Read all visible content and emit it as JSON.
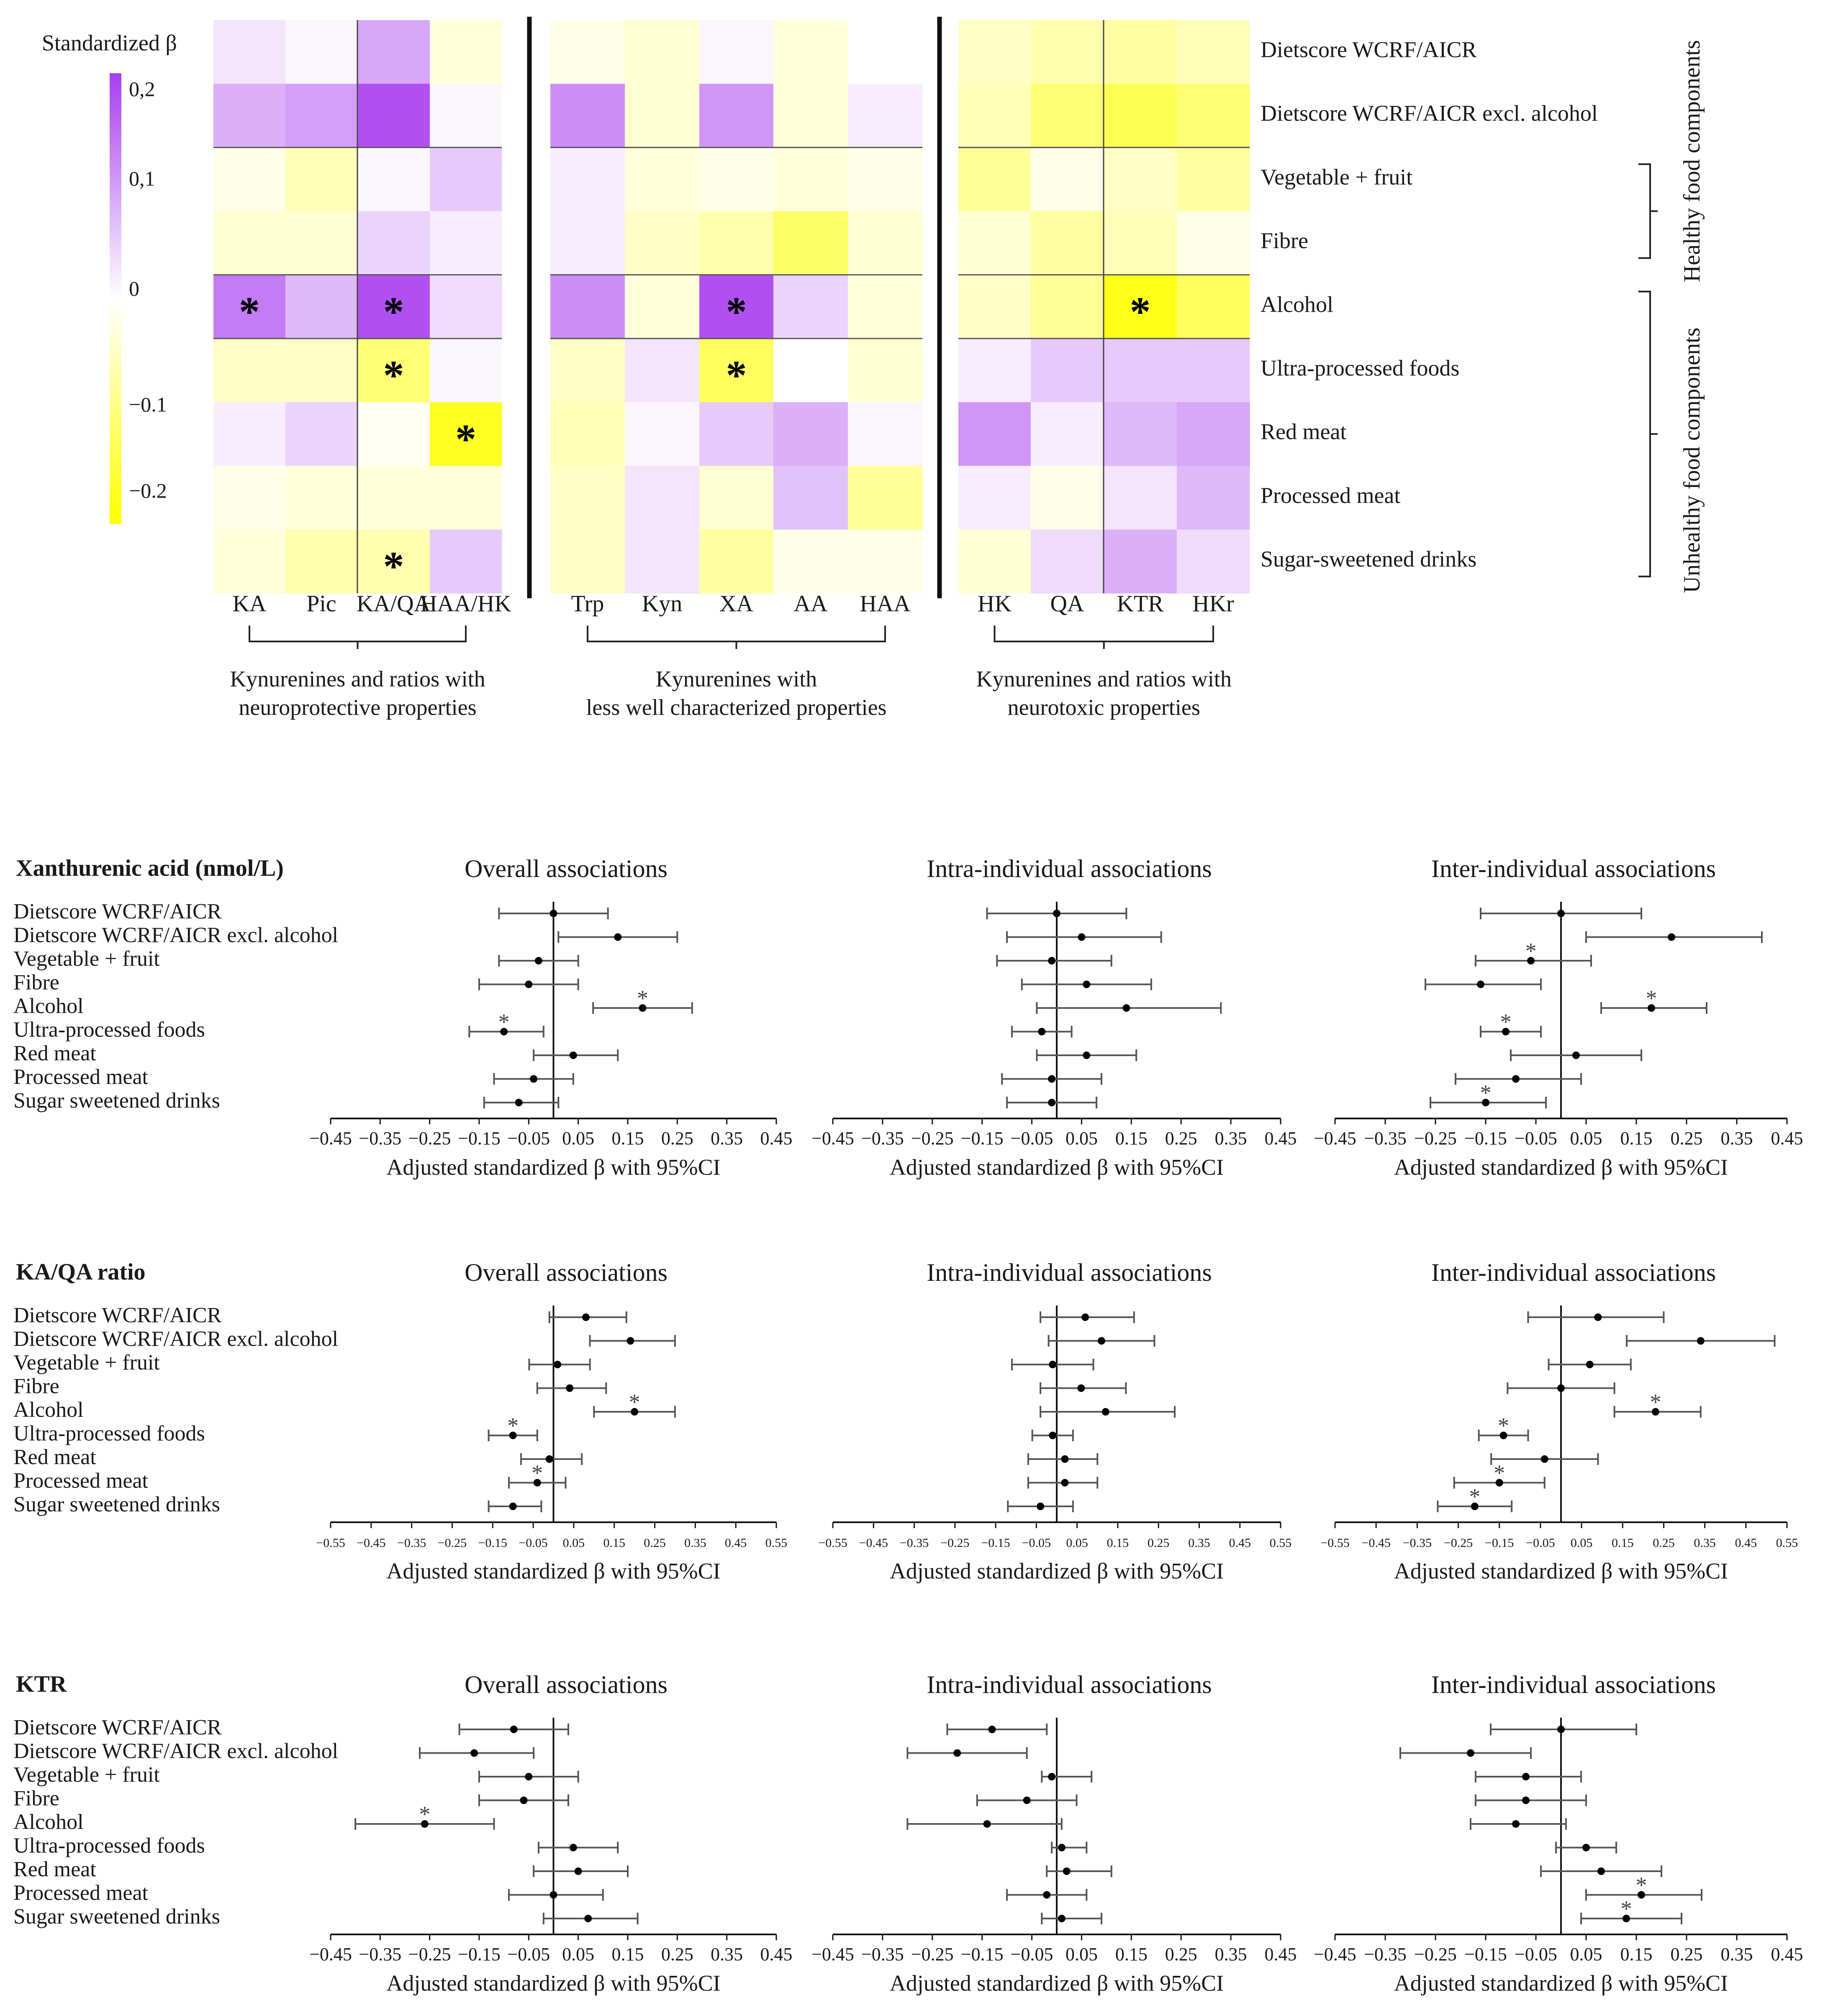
{
  "chart_data": [
    {
      "type": "heatmap",
      "legend_title": "Standardized β",
      "legend_ticks": [
        "0,2",
        "0,1",
        "0",
        "−0.1",
        "−0.2"
      ],
      "legend_tick_values": [
        0.2,
        0.1,
        0,
        -0.1,
        -0.2
      ],
      "color_range": [
        -0.22,
        0.22
      ],
      "colors": {
        "low": "#ffff00",
        "mid": "#ffffff",
        "high": "#a83ef0"
      },
      "rows": [
        "Dietscore WCRF/AICR",
        "Dietscore WCRF/AICR excl. alcohol",
        "Vegetable + fruit",
        "Fibre",
        "Alcohol",
        "Ultra-processed foods",
        "Red meat",
        "Processed meat",
        "Sugar-sweetened drinks"
      ],
      "columns": [
        "KA",
        "Pic",
        "KA/QA",
        "HAA/HK",
        "Trp",
        "Kyn",
        "XA",
        "AA",
        "HAA",
        "HK",
        "QA",
        "KTR",
        "HKr"
      ],
      "column_groups": [
        {
          "label": "Kynurenines and ratios with neuroprotective properties",
          "columns": [
            "KA",
            "Pic",
            "KA/QA",
            "HAA/HK"
          ]
        },
        {
          "label": "Kynurenines with less well characterized properties",
          "columns": [
            "Trp",
            "Kyn",
            "XA",
            "AA",
            "HAA"
          ]
        },
        {
          "label": "Kynurenines and ratios with neurotoxic properties",
          "columns": [
            "HK",
            "QA",
            "KTR",
            "HKr"
          ]
        }
      ],
      "row_groups": [
        {
          "label": "Healthy food components",
          "rows": [
            "Vegetable + fruit",
            "Fibre"
          ]
        },
        {
          "label": "Unhealthy food components",
          "rows": [
            "Alcohol",
            "Ultra-processed foods",
            "Red meat",
            "Processed meat",
            "Sugar-sweetened drinks"
          ]
        }
      ],
      "values": [
        [
          0.03,
          0.01,
          0.1,
          -0.03,
          -0.02,
          -0.04,
          0.01,
          -0.03,
          0.0,
          -0.05,
          -0.07,
          -0.08,
          -0.06
        ],
        [
          0.09,
          0.11,
          0.2,
          0.01,
          0.13,
          -0.04,
          0.12,
          -0.03,
          0.02,
          -0.06,
          -0.12,
          -0.15,
          -0.12
        ],
        [
          -0.02,
          -0.06,
          0.01,
          0.06,
          0.02,
          -0.03,
          -0.02,
          -0.03,
          -0.02,
          -0.09,
          -0.02,
          -0.05,
          -0.08
        ],
        [
          -0.04,
          -0.04,
          0.05,
          0.02,
          0.02,
          -0.05,
          -0.07,
          -0.13,
          -0.04,
          -0.04,
          -0.08,
          -0.06,
          -0.02
        ],
        [
          0.15,
          0.08,
          0.2,
          0.04,
          0.13,
          -0.03,
          0.2,
          0.05,
          -0.03,
          -0.05,
          -0.09,
          -0.2,
          -0.14
        ],
        [
          -0.05,
          -0.05,
          -0.12,
          0.01,
          -0.05,
          0.03,
          -0.14,
          0.0,
          -0.04,
          0.02,
          0.06,
          0.06,
          0.06
        ],
        [
          0.02,
          0.05,
          -0.01,
          -0.19,
          -0.06,
          0.01,
          0.06,
          0.09,
          0.01,
          0.12,
          0.02,
          0.08,
          0.1
        ],
        [
          -0.02,
          -0.03,
          -0.03,
          -0.03,
          -0.05,
          0.03,
          -0.04,
          0.07,
          -0.09,
          0.02,
          -0.02,
          0.03,
          0.08
        ],
        [
          -0.03,
          -0.07,
          -0.07,
          0.06,
          -0.05,
          0.03,
          -0.08,
          -0.02,
          -0.02,
          -0.04,
          0.04,
          0.09,
          0.04
        ]
      ],
      "significant": [
        {
          "row": "Alcohol",
          "column": "KA"
        },
        {
          "row": "Alcohol",
          "column": "KA/QA"
        },
        {
          "row": "Alcohol",
          "column": "XA"
        },
        {
          "row": "Alcohol",
          "column": "KTR"
        },
        {
          "row": "Ultra-processed foods",
          "column": "KA/QA"
        },
        {
          "row": "Ultra-processed foods",
          "column": "XA"
        },
        {
          "row": "Red meat",
          "column": "HAA/HK"
        },
        {
          "row": "Sugar-sweetened drinks",
          "column": "KA/QA"
        }
      ]
    },
    {
      "type": "scatter",
      "title": "Xanthurenic acid (nmol/L) — Overall associations",
      "section_label": "Xanthurenic acid (nmol/L)",
      "panel_title": "Overall associations",
      "xlabel": "Adjusted standardized β with 95%CI",
      "xlim": [
        -0.45,
        0.45
      ],
      "xticks": [
        "−0.45",
        "−0.35",
        "−0.25",
        "−0.15",
        "−0.05",
        "0.05",
        "0.15",
        "0.25",
        "0.35",
        "0.45"
      ],
      "categories": [
        "Dietscore WCRF/AICR",
        "Dietscore WCRF/AICR excl. alcohol",
        "Vegetable + fruit",
        "Fibre",
        "Alcohol",
        "Ultra-processed foods",
        "Red meat",
        "Processed meat",
        "Sugar sweetened drinks"
      ],
      "estimates": [
        0.0,
        0.13,
        -0.03,
        -0.05,
        0.18,
        -0.1,
        0.04,
        -0.04,
        -0.07
      ],
      "ci_lower": [
        -0.11,
        0.01,
        -0.11,
        -0.15,
        0.08,
        -0.17,
        -0.04,
        -0.12,
        -0.14
      ],
      "ci_upper": [
        0.11,
        0.25,
        0.05,
        0.05,
        0.28,
        -0.02,
        0.13,
        0.04,
        0.01
      ],
      "significant": [
        false,
        false,
        false,
        false,
        true,
        true,
        false,
        false,
        false
      ]
    },
    {
      "type": "scatter",
      "title": "Xanthurenic acid (nmol/L) — Intra-individual associations",
      "panel_title": "Intra-individual associations",
      "xlabel": "Adjusted standardized β with 95%CI",
      "xlim": [
        -0.45,
        0.45
      ],
      "xticks": [
        "−0.45",
        "−0.35",
        "−0.25",
        "−0.15",
        "−0.05",
        "0.05",
        "0.15",
        "0.25",
        "0.35",
        "0.45"
      ],
      "categories": [
        "Dietscore WCRF/AICR",
        "Dietscore WCRF/AICR excl. alcohol",
        "Vegetable + fruit",
        "Fibre",
        "Alcohol",
        "Ultra-processed foods",
        "Red meat",
        "Processed meat",
        "Sugar sweetened drinks"
      ],
      "estimates": [
        0.0,
        0.05,
        -0.01,
        0.06,
        0.14,
        -0.03,
        0.06,
        -0.01,
        -0.01
      ],
      "ci_lower": [
        -0.14,
        -0.1,
        -0.12,
        -0.07,
        -0.04,
        -0.09,
        -0.04,
        -0.11,
        -0.1
      ],
      "ci_upper": [
        0.14,
        0.21,
        0.11,
        0.19,
        0.33,
        0.03,
        0.16,
        0.09,
        0.08
      ],
      "significant": [
        false,
        false,
        false,
        false,
        false,
        false,
        false,
        false,
        false
      ]
    },
    {
      "type": "scatter",
      "title": "Xanthurenic acid (nmol/L) — Inter-individual associations",
      "panel_title": "Inter-individual associations",
      "xlabel": "Adjusted standardized β with 95%CI",
      "xlim": [
        -0.45,
        0.45
      ],
      "xticks": [
        "−0.45",
        "−0.35",
        "−0.25",
        "−0.15",
        "−0.05",
        "0.05",
        "0.15",
        "0.25",
        "0.35",
        "0.45"
      ],
      "categories": [
        "Dietscore WCRF/AICR",
        "Dietscore WCRF/AICR excl. alcohol",
        "Vegetable + fruit",
        "Fibre",
        "Alcohol",
        "Ultra-processed foods",
        "Red meat",
        "Processed meat",
        "Sugar sweetened drinks"
      ],
      "estimates": [
        0.0,
        0.22,
        -0.06,
        -0.16,
        0.18,
        -0.11,
        0.03,
        -0.09,
        -0.15
      ],
      "ci_lower": [
        -0.16,
        0.05,
        -0.17,
        -0.27,
        0.08,
        -0.16,
        -0.1,
        -0.21,
        -0.26
      ],
      "ci_upper": [
        0.16,
        0.4,
        0.06,
        -0.04,
        0.29,
        -0.04,
        0.16,
        0.04,
        -0.03
      ],
      "significant": [
        false,
        false,
        true,
        false,
        true,
        true,
        false,
        false,
        true
      ]
    },
    {
      "type": "scatter",
      "title": "KA/QA ratio — Overall associations",
      "section_label": "KA/QA ratio",
      "panel_title": "Overall associations",
      "xlabel": "Adjusted standardized β with 95%CI",
      "xlim": [
        -0.55,
        0.55
      ],
      "xticks": [
        "−0.55",
        "−0.45",
        "−0.35",
        "−0.25",
        "−0.15",
        "−0.05",
        "0.05",
        "0.15",
        "0.25",
        "0.35",
        "0.45",
        "0.55"
      ],
      "categories": [
        "Dietscore WCRF/AICR",
        "Dietscore WCRF/AICR excl. alcohol",
        "Vegetable + fruit",
        "Fibre",
        "Alcohol",
        "Ultra-processed foods",
        "Red meat",
        "Processed meat",
        "Sugar sweetened drinks"
      ],
      "estimates": [
        0.08,
        0.19,
        0.01,
        0.04,
        0.2,
        -0.1,
        -0.01,
        -0.04,
        -0.1
      ],
      "ci_lower": [
        -0.01,
        0.09,
        -0.06,
        -0.04,
        0.1,
        -0.16,
        -0.08,
        -0.11,
        -0.16
      ],
      "ci_upper": [
        0.18,
        0.3,
        0.09,
        0.13,
        0.3,
        -0.04,
        0.07,
        0.03,
        -0.03
      ],
      "significant": [
        false,
        false,
        false,
        false,
        true,
        true,
        false,
        true,
        false
      ]
    },
    {
      "type": "scatter",
      "title": "KA/QA ratio — Intra-individual associations",
      "panel_title": "Intra-individual associations",
      "xlabel": "Adjusted standardized β with 95%CI",
      "xlim": [
        -0.55,
        0.55
      ],
      "xticks": [
        "−0.55",
        "−0.45",
        "−0.35",
        "−0.25",
        "−0.15",
        "−0.05",
        "0.05",
        "0.15",
        "0.25",
        "0.35",
        "0.45",
        "0.55"
      ],
      "categories": [
        "Dietscore WCRF/AICR",
        "Dietscore WCRF/AICR excl. alcohol",
        "Vegetable + fruit",
        "Fibre",
        "Alcohol",
        "Ultra-processed foods",
        "Red meat",
        "Processed meat",
        "Sugar sweetened drinks"
      ],
      "estimates": [
        0.07,
        0.11,
        -0.01,
        0.06,
        0.12,
        -0.01,
        0.02,
        0.02,
        -0.04
      ],
      "ci_lower": [
        -0.04,
        -0.02,
        -0.11,
        -0.04,
        -0.04,
        -0.06,
        -0.07,
        -0.07,
        -0.12
      ],
      "ci_upper": [
        0.19,
        0.24,
        0.09,
        0.17,
        0.29,
        0.04,
        0.1,
        0.1,
        0.04
      ],
      "significant": [
        false,
        false,
        false,
        false,
        false,
        false,
        false,
        false,
        false
      ]
    },
    {
      "type": "scatter",
      "title": "KA/QA ratio — Inter-individual associations",
      "panel_title": "Inter-individual associations",
      "xlabel": "Adjusted standardized β with 95%CI",
      "xlim": [
        -0.55,
        0.55
      ],
      "xticks": [
        "−0.55",
        "−0.45",
        "−0.35",
        "−0.25",
        "−0.15",
        "−0.05",
        "0.05",
        "0.15",
        "0.25",
        "0.35",
        "0.45",
        "0.55"
      ],
      "categories": [
        "Dietscore WCRF/AICR",
        "Dietscore WCRF/AICR excl. alcohol",
        "Vegetable + fruit",
        "Fibre",
        "Alcohol",
        "Ultra-processed foods",
        "Red meat",
        "Processed meat",
        "Sugar sweetened drinks"
      ],
      "estimates": [
        0.09,
        0.34,
        0.07,
        0.0,
        0.23,
        -0.14,
        -0.04,
        -0.15,
        -0.21
      ],
      "ci_lower": [
        -0.08,
        0.16,
        -0.03,
        -0.13,
        0.13,
        -0.2,
        -0.17,
        -0.26,
        -0.3
      ],
      "ci_upper": [
        0.25,
        0.52,
        0.17,
        0.13,
        0.34,
        -0.08,
        0.09,
        -0.04,
        -0.12
      ],
      "significant": [
        false,
        false,
        false,
        false,
        true,
        true,
        false,
        true,
        true
      ]
    },
    {
      "type": "scatter",
      "title": "KTR — Overall associations",
      "section_label": "KTR",
      "panel_title": "Overall associations",
      "xlabel": "Adjusted standardized β with 95%CI",
      "xlim": [
        -0.45,
        0.45
      ],
      "xticks": [
        "−0.45",
        "−0.35",
        "−0.25",
        "−0.15",
        "−0.05",
        "0.05",
        "0.15",
        "0.25",
        "0.35",
        "0.45"
      ],
      "categories": [
        "Dietscore WCRF/AICR",
        "Dietscore WCRF/AICR excl. alcohol",
        "Vegetable + fruit",
        "Fibre",
        "Alcohol",
        "Ultra-processed foods",
        "Red meat",
        "Processed meat",
        "Sugar sweetened drinks"
      ],
      "estimates": [
        -0.08,
        -0.16,
        -0.05,
        -0.06,
        -0.26,
        0.04,
        0.05,
        0.0,
        0.07
      ],
      "ci_lower": [
        -0.19,
        -0.27,
        -0.15,
        -0.15,
        -0.4,
        -0.03,
        -0.04,
        -0.09,
        -0.02
      ],
      "ci_upper": [
        0.03,
        -0.04,
        0.05,
        0.03,
        -0.12,
        0.13,
        0.15,
        0.1,
        0.17
      ],
      "significant": [
        false,
        false,
        false,
        false,
        true,
        false,
        false,
        false,
        false
      ]
    },
    {
      "type": "scatter",
      "title": "KTR — Intra-individual associations",
      "panel_title": "Intra-individual associations",
      "xlabel": "Adjusted standardized β with 95%CI",
      "xlim": [
        -0.45,
        0.45
      ],
      "xticks": [
        "−0.45",
        "−0.35",
        "−0.25",
        "−0.15",
        "−0.05",
        "0.05",
        "0.15",
        "0.25",
        "0.35",
        "0.45"
      ],
      "categories": [
        "Dietscore WCRF/AICR",
        "Dietscore WCRF/AICR excl. alcohol",
        "Vegetable + fruit",
        "Fibre",
        "Alcohol",
        "Ultra-processed foods",
        "Red meat",
        "Processed meat",
        "Sugar sweetened drinks"
      ],
      "estimates": [
        -0.13,
        -0.2,
        -0.01,
        -0.06,
        -0.14,
        0.01,
        0.02,
        -0.02,
        0.01
      ],
      "ci_lower": [
        -0.22,
        -0.3,
        -0.03,
        -0.16,
        -0.3,
        -0.01,
        -0.02,
        -0.1,
        -0.03
      ],
      "ci_upper": [
        -0.02,
        -0.06,
        0.07,
        0.04,
        0.01,
        0.06,
        0.11,
        0.06,
        0.09
      ],
      "significant": [
        false,
        false,
        false,
        false,
        false,
        false,
        false,
        false,
        false
      ]
    },
    {
      "type": "scatter",
      "title": "KTR — Inter-individual associations",
      "panel_title": "Inter-individual associations",
      "xlabel": "Adjusted standardized β with 95%CI",
      "xlim": [
        -0.45,
        0.45
      ],
      "xticks": [
        "−0.45",
        "−0.35",
        "−0.25",
        "−0.15",
        "−0.05",
        "0.05",
        "0.15",
        "0.25",
        "0.35",
        "0.45"
      ],
      "categories": [
        "Dietscore WCRF/AICR",
        "Dietscore WCRF/AICR excl. alcohol",
        "Vegetable + fruit",
        "Fibre",
        "Alcohol",
        "Ultra-processed foods",
        "Red meat",
        "Processed meat",
        "Sugar sweetened drinks"
      ],
      "estimates": [
        0.0,
        -0.18,
        -0.07,
        -0.07,
        -0.09,
        0.05,
        0.08,
        0.16,
        0.13
      ],
      "ci_lower": [
        -0.14,
        -0.32,
        -0.17,
        -0.17,
        -0.18,
        -0.01,
        -0.04,
        0.05,
        0.04
      ],
      "ci_upper": [
        0.15,
        -0.06,
        0.04,
        0.05,
        0.01,
        0.11,
        0.2,
        0.28,
        0.24
      ],
      "significant": [
        false,
        false,
        false,
        false,
        false,
        false,
        false,
        true,
        true
      ]
    }
  ]
}
